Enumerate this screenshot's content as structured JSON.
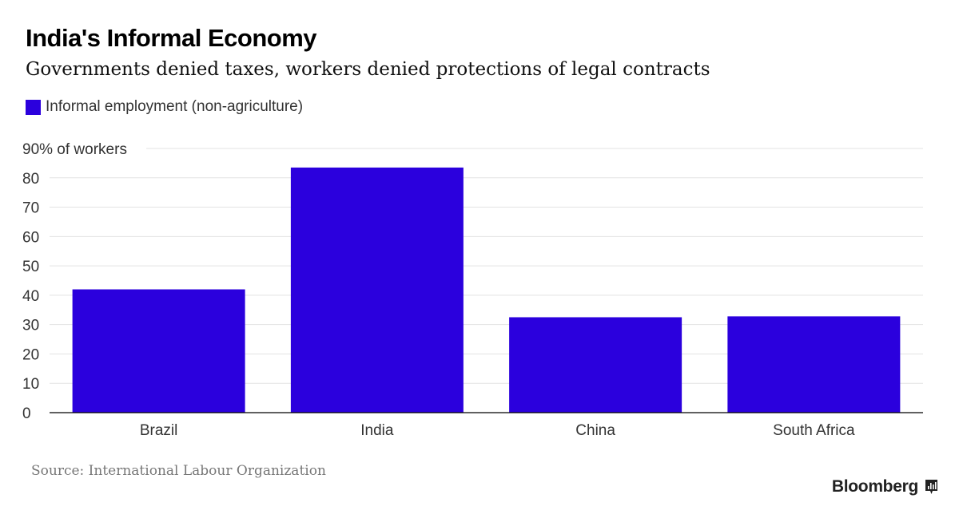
{
  "chart_data": {
    "type": "bar",
    "title": "India's Informal Economy",
    "subtitle": "Governments denied taxes, workers denied protections of legal contracts",
    "categories": [
      "Brazil",
      "India",
      "China",
      "South Africa"
    ],
    "series": [
      {
        "name": "Informal employment (non-agriculture)",
        "values": [
          42,
          83.5,
          32.5,
          32.8
        ],
        "color": "#2b00dd"
      }
    ],
    "ylim": [
      0,
      90
    ],
    "yticks": [
      0,
      10,
      20,
      30,
      40,
      50,
      60,
      70,
      80,
      90
    ],
    "ytick_labels": [
      "0",
      "10",
      "20",
      "30",
      "40",
      "50",
      "60",
      "70",
      "80",
      "90% of workers"
    ],
    "grid": true,
    "legend": "top-left"
  },
  "source": "Source: International Labour Organization",
  "brand": "Bloomberg",
  "brand_icon": "bloomberg-chart-icon"
}
